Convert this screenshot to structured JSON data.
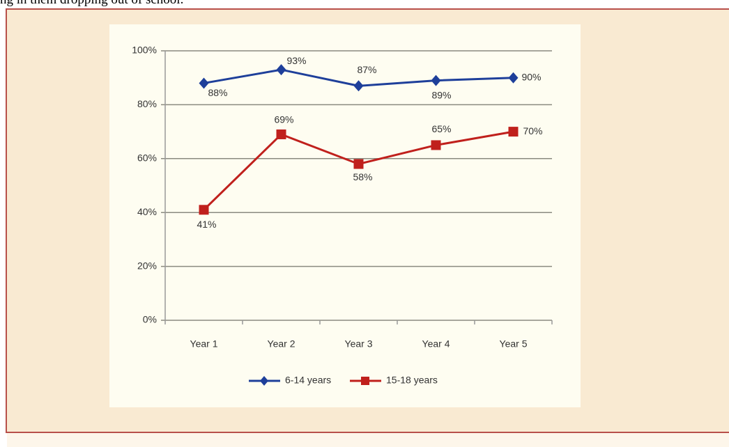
{
  "intro_text": "ng in them dropping out of school.",
  "chart_data": {
    "type": "line",
    "categories": [
      "Year 1",
      "Year 2",
      "Year 3",
      "Year 4",
      "Year 5"
    ],
    "series": [
      {
        "name": "6-14 years",
        "color": "#1e3f9a",
        "marker": "diamond",
        "values": [
          88,
          93,
          87,
          89,
          90
        ],
        "value_labels": [
          "88%",
          "93%",
          "87%",
          "89%",
          "90%"
        ]
      },
      {
        "name": "15-18 years",
        "color": "#c0201c",
        "marker": "square",
        "values": [
          41,
          69,
          58,
          65,
          70
        ],
        "value_labels": [
          "41%",
          "69%",
          "58%",
          "65%",
          "70%"
        ]
      }
    ],
    "ylim": [
      0,
      100
    ],
    "yticks": [
      {
        "value": 0,
        "label": "0%"
      },
      {
        "value": 20,
        "label": "20%"
      },
      {
        "value": 40,
        "label": "40%"
      },
      {
        "value": 60,
        "label": "60%"
      },
      {
        "value": 80,
        "label": "80%"
      },
      {
        "value": 100,
        "label": "100%"
      }
    ],
    "grid": true,
    "legend": "bottom"
  }
}
